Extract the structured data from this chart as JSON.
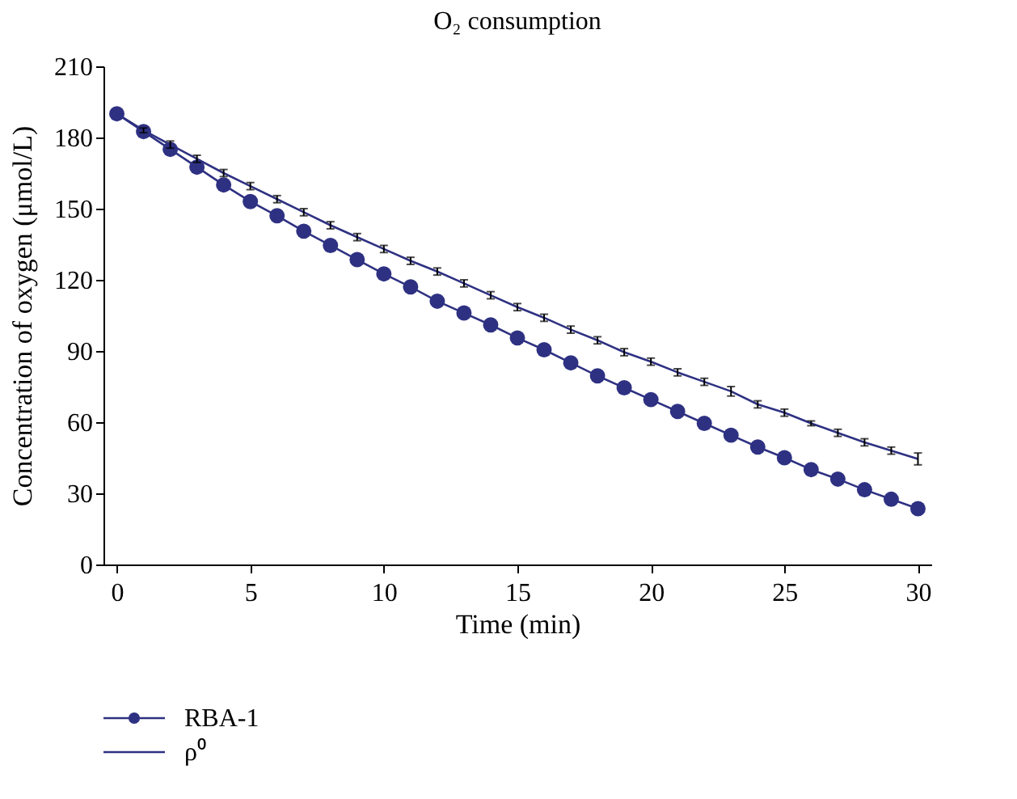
{
  "chart_data": {
    "type": "line",
    "title": "O₂ consumption",
    "xlabel": "Time (min)",
    "ylabel": "Concentration of oxygen (μmol/L)",
    "x": [
      0,
      1,
      2,
      3,
      4,
      5,
      6,
      7,
      8,
      9,
      10,
      11,
      12,
      13,
      14,
      15,
      16,
      17,
      18,
      19,
      20,
      21,
      22,
      23,
      24,
      25,
      26,
      27,
      28,
      29,
      30
    ],
    "series": [
      {
        "name": "RBA-1",
        "color": "#2e3182",
        "marker": "circle",
        "values": [
          190,
          182.5,
          175,
          167.5,
          160,
          153,
          147,
          140.5,
          134.5,
          128.5,
          122.5,
          117,
          111,
          106,
          101,
          95.5,
          90.5,
          85,
          79.5,
          74.5,
          69.5,
          64.5,
          59.5,
          54.5,
          49.5,
          45,
          40,
          36,
          31.5,
          27.5,
          23.5
        ]
      },
      {
        "name": "ρ⁰",
        "color": "#2e3182",
        "marker": "none",
        "values": [
          190,
          183,
          177,
          171,
          165,
          159.5,
          154,
          148.5,
          143,
          138,
          133,
          128,
          123.5,
          118.5,
          113.5,
          108.5,
          104,
          99,
          94.5,
          89.5,
          85.5,
          81,
          77,
          73,
          67.5,
          64,
          59.5,
          55.5,
          51.5,
          48,
          44.5
        ],
        "errors": [
          null,
          1,
          1.5,
          1.5,
          1.5,
          1.5,
          1.5,
          1.5,
          1.5,
          1.5,
          1.5,
          1.5,
          1.5,
          1.5,
          1.5,
          1.5,
          1.5,
          1.5,
          1.5,
          1.5,
          1.5,
          1.5,
          1.5,
          2,
          1.5,
          1.5,
          1,
          1.5,
          1.5,
          1.5,
          2.5
        ]
      }
    ],
    "xlim": [
      -0.5,
      30.5
    ],
    "xticks": [
      0,
      5,
      10,
      15,
      20,
      25,
      30
    ],
    "ylim": [
      0,
      210
    ],
    "yticks": [
      0,
      30,
      60,
      90,
      120,
      150,
      180,
      210
    ],
    "grid": false,
    "legend": "bottom left"
  }
}
